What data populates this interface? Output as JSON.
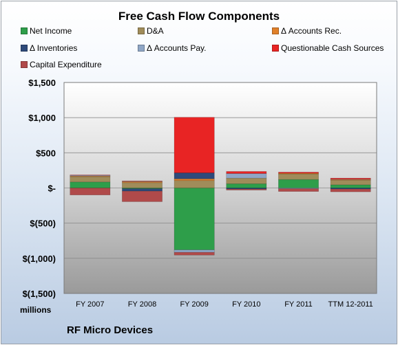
{
  "chart_data": {
    "type": "bar",
    "stacked": true,
    "title": "Free Cash Flow Components",
    "ylabel": "",
    "xlabel": "",
    "units_label": "millions",
    "company": "RF Micro Devices",
    "ylim": [
      -1500,
      1500
    ],
    "yticks": [
      1500,
      1000,
      500,
      0,
      -500,
      -1000,
      -1500
    ],
    "ytick_labels": [
      "$1,500",
      "$1,000",
      "$500",
      "$-",
      "$(500)",
      "$(1,000)",
      "$(1,500)"
    ],
    "grid": true,
    "legend_position": "top",
    "categories": [
      "FY 2007",
      "FY 2008",
      "FY 2009",
      "FY 2010",
      "FY 2011",
      "TTM 12-2011"
    ],
    "series": [
      {
        "name": "Net Income",
        "color": "#2e9e4a",
        "values": [
          85,
          -10,
          -880,
          60,
          120,
          45
        ]
      },
      {
        "name": "D&A",
        "color": "#a08c5a",
        "values": [
          75,
          75,
          105,
          80,
          80,
          65
        ]
      },
      {
        "name": "Δ Accounts Rec.",
        "color": "#e0802a",
        "values": [
          10,
          15,
          25,
          0,
          10,
          10
        ]
      },
      {
        "name": "Δ Inventories",
        "color": "#2e4a7a",
        "values": [
          0,
          -35,
          85,
          -15,
          0,
          -15
        ]
      },
      {
        "name": "Δ Accounts Pay.",
        "color": "#8fa6c6",
        "values": [
          10,
          5,
          -35,
          65,
          -10,
          5
        ]
      },
      {
        "name": "Questionable Cash Sources",
        "color": "#e82424",
        "values": [
          5,
          5,
          790,
          30,
          15,
          15
        ]
      },
      {
        "name": "Capital Expenditure",
        "color": "#b04a4a",
        "values": [
          -100,
          -150,
          -40,
          -15,
          -40,
          -40
        ]
      }
    ]
  }
}
